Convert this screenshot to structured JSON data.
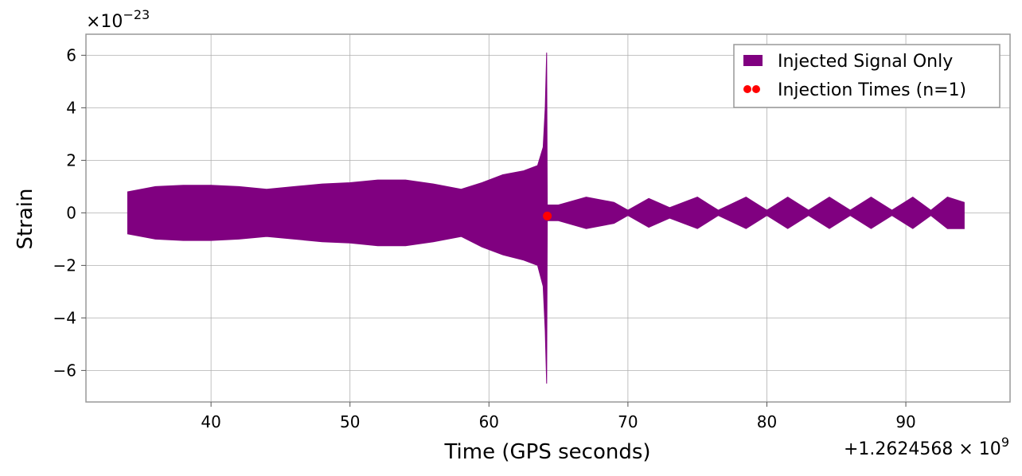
{
  "chart_data": {
    "type": "line",
    "xlabel": "Time (GPS seconds)",
    "ylabel": "Strain",
    "x_offset_label": "+1.2624568 × 10",
    "x_offset_exponent": "9",
    "y_multiplier_label": "×10",
    "y_multiplier_exponent": "−23",
    "xlim": [
      31,
      97.5
    ],
    "ylim": [
      -7.2,
      6.8
    ],
    "x_ticks": [
      40,
      50,
      60,
      70,
      80,
      90
    ],
    "x_tick_labels": [
      "40",
      "50",
      "60",
      "70",
      "80",
      "90"
    ],
    "y_ticks": [
      -6,
      -4,
      -2,
      0,
      2,
      4,
      6
    ],
    "y_tick_labels": [
      "−6",
      "−4",
      "−2",
      "0",
      "2",
      "4",
      "6"
    ],
    "grid": true,
    "legend_position": "top-right",
    "series": [
      {
        "name": "Injected Signal Only",
        "color": "#800080",
        "kind": "envelope",
        "upper": [
          [
            34.0,
            0.8
          ],
          [
            36.0,
            1.0
          ],
          [
            38.0,
            1.05
          ],
          [
            40.0,
            1.05
          ],
          [
            42.0,
            1.0
          ],
          [
            44.0,
            0.9
          ],
          [
            46.0,
            1.0
          ],
          [
            48.0,
            1.1
          ],
          [
            50.0,
            1.15
          ],
          [
            52.0,
            1.25
          ],
          [
            54.0,
            1.25
          ],
          [
            56.0,
            1.1
          ],
          [
            58.0,
            0.9
          ],
          [
            59.5,
            1.15
          ],
          [
            61.0,
            1.45
          ],
          [
            62.5,
            1.6
          ],
          [
            63.5,
            1.8
          ],
          [
            63.9,
            2.5
          ],
          [
            64.05,
            4.0
          ],
          [
            64.15,
            6.1
          ],
          [
            64.2,
            0.3
          ],
          [
            65.0,
            0.3
          ],
          [
            67.0,
            0.6
          ],
          [
            69.0,
            0.4
          ],
          [
            70.0,
            0.1
          ],
          [
            71.5,
            0.55
          ],
          [
            73.0,
            0.2
          ],
          [
            75.0,
            0.6
          ],
          [
            76.5,
            0.1
          ],
          [
            78.5,
            0.6
          ],
          [
            80.0,
            0.1
          ],
          [
            81.5,
            0.6
          ],
          [
            83.0,
            0.1
          ],
          [
            84.5,
            0.6
          ],
          [
            86.0,
            0.1
          ],
          [
            87.5,
            0.6
          ],
          [
            89.0,
            0.1
          ],
          [
            90.5,
            0.6
          ],
          [
            91.8,
            0.1
          ],
          [
            93.0,
            0.6
          ],
          [
            94.2,
            0.4
          ]
        ],
        "lower": [
          [
            34.0,
            -0.8
          ],
          [
            36.0,
            -1.0
          ],
          [
            38.0,
            -1.05
          ],
          [
            40.0,
            -1.05
          ],
          [
            42.0,
            -1.0
          ],
          [
            44.0,
            -0.9
          ],
          [
            46.0,
            -1.0
          ],
          [
            48.0,
            -1.1
          ],
          [
            50.0,
            -1.15
          ],
          [
            52.0,
            -1.25
          ],
          [
            54.0,
            -1.25
          ],
          [
            56.0,
            -1.1
          ],
          [
            58.0,
            -0.9
          ],
          [
            59.5,
            -1.3
          ],
          [
            61.0,
            -1.6
          ],
          [
            62.5,
            -1.8
          ],
          [
            63.5,
            -2.0
          ],
          [
            63.9,
            -2.8
          ],
          [
            64.05,
            -4.5
          ],
          [
            64.15,
            -6.5
          ],
          [
            64.2,
            -0.3
          ],
          [
            65.0,
            -0.3
          ],
          [
            67.0,
            -0.6
          ],
          [
            69.0,
            -0.4
          ],
          [
            70.0,
            -0.1
          ],
          [
            71.5,
            -0.55
          ],
          [
            73.0,
            -0.2
          ],
          [
            75.0,
            -0.6
          ],
          [
            76.5,
            -0.1
          ],
          [
            78.5,
            -0.6
          ],
          [
            80.0,
            -0.1
          ],
          [
            81.5,
            -0.6
          ],
          [
            83.0,
            -0.1
          ],
          [
            84.5,
            -0.6
          ],
          [
            86.0,
            -0.1
          ],
          [
            87.5,
            -0.6
          ],
          [
            89.0,
            -0.1
          ],
          [
            90.5,
            -0.6
          ],
          [
            91.8,
            -0.1
          ],
          [
            93.0,
            -0.6
          ],
          [
            94.2,
            -0.6
          ]
        ]
      },
      {
        "name": "Injection Times (n=1)",
        "color": "#ff0000",
        "kind": "scatter",
        "points": [
          [
            64.2,
            -0.12
          ]
        ]
      }
    ]
  }
}
